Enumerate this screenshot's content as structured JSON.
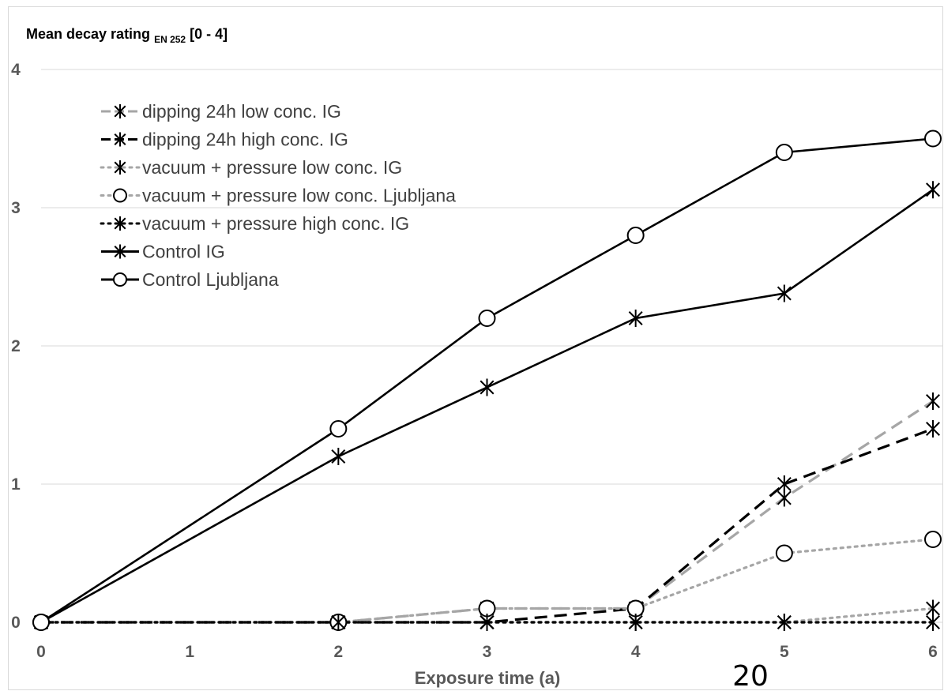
{
  "page_number": "20",
  "chart_data": {
    "type": "line",
    "title": "",
    "ylabel_main": "Mean decay rating ",
    "ylabel_sub": "EN 252",
    "ylabel_range": " [0 - 4]",
    "xlabel": "Exposure time (a)",
    "x_ticks": [
      "0",
      "1",
      "2",
      "3",
      "4",
      "5",
      "6"
    ],
    "y_ticks": [
      "0",
      "1",
      "2",
      "3",
      "4"
    ],
    "xlim": [
      0,
      6
    ],
    "ylim": [
      0,
      4
    ],
    "grid": "horizontal",
    "legend_position": "top-left",
    "series": [
      {
        "name": "dipping 24h low conc. IG",
        "color": "#a6a6a6",
        "dash": "dash",
        "marker": "asterisk",
        "x": [
          0,
          2,
          3,
          4,
          5,
          6
        ],
        "y": [
          0,
          0,
          0.1,
          0.1,
          0.9,
          1.6
        ]
      },
      {
        "name": "dipping 24h high conc. IG",
        "color": "#000000",
        "dash": "dash",
        "marker": "asterisk",
        "x": [
          0,
          2,
          3,
          4,
          5,
          6
        ],
        "y": [
          0,
          0,
          0,
          0.1,
          1.0,
          1.4
        ]
      },
      {
        "name": "vacuum + pressure low conc. IG",
        "color": "#a6a6a6",
        "dash": "dot",
        "marker": "asterisk",
        "x": [
          0,
          2,
          3,
          4,
          5,
          6
        ],
        "y": [
          0,
          0,
          0,
          0,
          0,
          0.1
        ]
      },
      {
        "name": "vacuum + pressure low conc. Ljubljana",
        "color": "#a6a6a6",
        "dash": "dot",
        "marker": "circle",
        "x": [
          0,
          2,
          3,
          4,
          5,
          6
        ],
        "y": [
          0,
          0,
          0.1,
          0.1,
          0.5,
          0.6
        ]
      },
      {
        "name": "vacuum + pressure high conc. IG",
        "color": "#000000",
        "dash": "dot",
        "marker": "asterisk",
        "x": [
          0,
          2,
          3,
          4,
          5,
          6
        ],
        "y": [
          0,
          0,
          0,
          0,
          0,
          0
        ]
      },
      {
        "name": "Control IG",
        "color": "#000000",
        "dash": "solid",
        "marker": "asterisk",
        "x": [
          0,
          2,
          3,
          4,
          5,
          6
        ],
        "y": [
          0,
          1.2,
          1.7,
          2.2,
          2.38,
          3.13
        ]
      },
      {
        "name": "Control Ljubljana",
        "color": "#000000",
        "dash": "solid",
        "marker": "circle",
        "x": [
          0,
          2,
          3,
          4,
          5,
          6
        ],
        "y": [
          0,
          1.4,
          2.2,
          2.8,
          3.4,
          3.5
        ]
      }
    ]
  }
}
